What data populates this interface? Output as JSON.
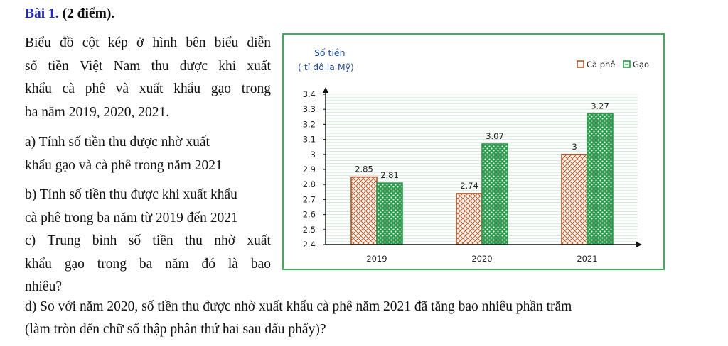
{
  "header": {
    "lead": "Bài 1.",
    "points": " (2 điểm)."
  },
  "intro": [
    "Biểu đồ cột kép ở hình bên biểu diễn",
    "số tiền Việt Nam thu được khi xuất",
    "khẩu cà phê và xuất khẩu gạo trong",
    "ba năm 2019, 2020, 2021."
  ],
  "question_a": [
    "a) Tính số tiền thu được nhờ xuất",
    "khẩu gạo và cà phê trong năm 2021"
  ],
  "question_b": [
    "b) Tính số tiền thu được khi xuất khẩu",
    "cà phê trong ba năm từ 2019 đến 2021"
  ],
  "question_c": [
    "c) Trung bình số tiền thu nhờ xuất",
    "khẩu gạo trong ba năm đó là bao",
    "nhiêu?"
  ],
  "question_d": [
    "d) So với năm 2020, số tiền thu được nhờ xuất khẩu cà phê năm 2021 đã tăng bao nhiêu phần trăm",
    "(làm tròn đến chữ số thập phân thứ hai sau dấu phẩy)?"
  ],
  "chart_data": {
    "type": "bar",
    "ylabel": [
      "Số tiền",
      "( tỉ đô la Mỹ)"
    ],
    "categories": [
      "2019",
      "2020",
      "2021"
    ],
    "series": [
      {
        "name": "Cà phê",
        "values": [
          2.85,
          2.74,
          3
        ],
        "labels": [
          "2.85",
          "2.74",
          "3"
        ],
        "color": "#b5562a"
      },
      {
        "name": "Gạo",
        "values": [
          2.81,
          3.07,
          3.27
        ],
        "labels": [
          "2.81",
          "3.07",
          "3.27"
        ],
        "color": "#2c9c4c"
      }
    ],
    "ylim": [
      2.4,
      3.4
    ],
    "yticks": [
      "2.4",
      "2.5",
      "2.6",
      "2.7",
      "2.8",
      "2.9",
      "3",
      "3.1",
      "3.2",
      "3.3",
      "3.4"
    ],
    "legend_position": "top-right",
    "grid": true
  }
}
